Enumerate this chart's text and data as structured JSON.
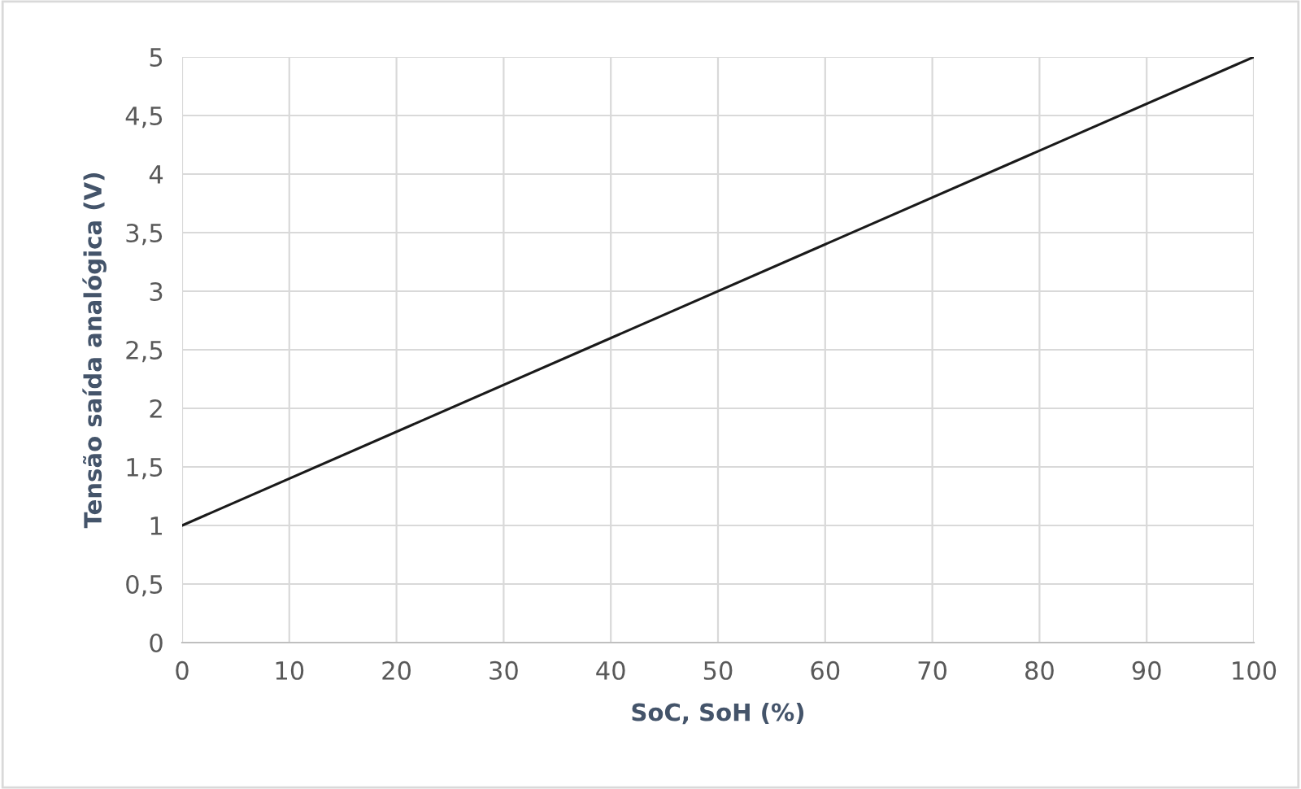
{
  "chart_data": {
    "type": "line",
    "xlabel": "SoC, SoH (%)",
    "ylabel": "Tensão saída analógica (V)",
    "x": [
      0,
      100
    ],
    "series": [
      {
        "color": "#1a1a1a",
        "values": [
          1,
          5
        ]
      }
    ],
    "xlim": [
      0,
      100
    ],
    "xticks": [
      0,
      10,
      20,
      30,
      40,
      50,
      60,
      70,
      80,
      90,
      100
    ],
    "ylim": [
      0,
      5
    ],
    "yticks": [
      0,
      {
        "value": 0.5,
        "label": "0,5"
      },
      1,
      {
        "value": 1.5,
        "label": "1,5"
      },
      2,
      {
        "value": 2.5,
        "label": "2,5"
      },
      3,
      {
        "value": 3.5,
        "label": "3,5"
      },
      4,
      {
        "value": 4.5,
        "label": "4,5"
      },
      5
    ],
    "grid": true,
    "marker": "none",
    "line_style": "solid"
  }
}
